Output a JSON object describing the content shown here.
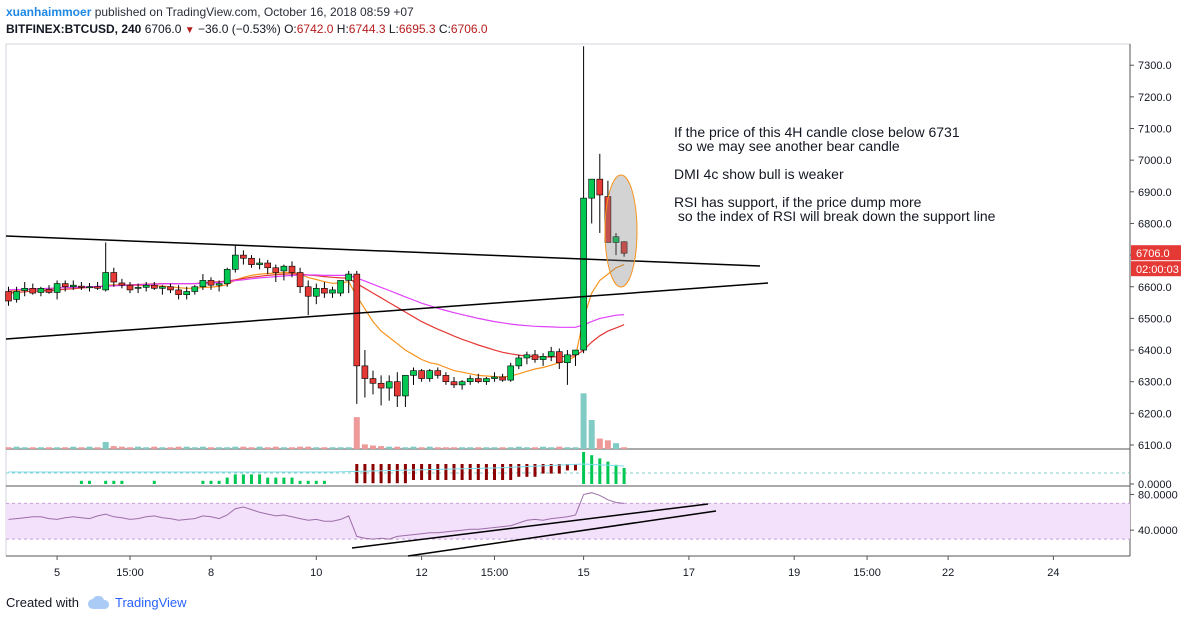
{
  "header": {
    "author": "xuanhaimmoer",
    "published_text": "published on TradingView.com, October 16, 2018 08:59 +07",
    "symbol": "BITFINEX:BTCUSD, 240",
    "last": "6706.0",
    "change": "−36.0 (−0.53%)",
    "o_label": "O:",
    "o_value": "6742.0",
    "h_label": "H:",
    "h_value": "6744.3",
    "l_label": "L:",
    "l_value": "6695.3",
    "c_label": "C:",
    "c_value": "6706.0"
  },
  "footer": {
    "created_with": "Created with",
    "brand": "TradingView"
  },
  "colors": {
    "bull": "#00c853",
    "bear": "#e53935",
    "ma_fast": "#f7941d",
    "ma_mid": "#e53935",
    "ma_slow": "#e040fb",
    "rsi_band": "#f3e0fb",
    "rsi_line": "#9c6ea8",
    "vol_bull": "#80cbc4",
    "vol_bear": "#ef9a9a",
    "price_tag_bg": "#e53935",
    "dmi_bull": "#00c853",
    "dmi_bear": "#8b0000"
  },
  "annotations": [
    "If the price of this 4H candle close below 6731",
    " so we may see another bear candle",
    "DMI 4c show bull is weaker",
    "RSI has support, if the price dump more",
    " so the index of RSI will break down the support line"
  ],
  "chart_data": {
    "type": "candlestick",
    "price_axis": {
      "ticks": [
        7300,
        7200,
        7100,
        7000,
        6900,
        6800,
        6700,
        6600,
        6500,
        6400,
        6300,
        6200,
        6100
      ],
      "tick_labels": [
        "7300.0",
        "7200.0",
        "7100.0",
        "7000.0",
        "6900.0",
        "6800.0",
        "6700.0",
        "6600.0",
        "6500.0",
        "6400.0",
        "6300.0",
        "6200.0",
        "6100.0"
      ],
      "last_price_label": "6706.0",
      "countdown_label": "02:00:03"
    },
    "x_axis": {
      "tick_labels": [
        "5",
        "15:00",
        "8",
        "10",
        "12",
        "15:00",
        "15",
        "17",
        "19",
        "15:00",
        "22",
        "24"
      ],
      "tick_index": [
        6,
        15,
        25,
        38,
        51,
        60,
        71,
        84,
        97,
        106,
        116,
        129
      ]
    },
    "candles_ohlc": [
      [
        6585,
        6600,
        6540,
        6555
      ],
      [
        6560,
        6600,
        6550,
        6585
      ],
      [
        6588,
        6615,
        6570,
        6595
      ],
      [
        6595,
        6610,
        6575,
        6580
      ],
      [
        6582,
        6600,
        6570,
        6595
      ],
      [
        6592,
        6605,
        6578,
        6582
      ],
      [
        6582,
        6620,
        6560,
        6610
      ],
      [
        6610,
        6620,
        6585,
        6600
      ],
      [
        6600,
        6620,
        6590,
        6605
      ],
      [
        6602,
        6615,
        6590,
        6598
      ],
      [
        6598,
        6612,
        6585,
        6600
      ],
      [
        6600,
        6615,
        6590,
        6595
      ],
      [
        6590,
        6740,
        6585,
        6645
      ],
      [
        6645,
        6660,
        6600,
        6615
      ],
      [
        6612,
        6625,
        6595,
        6605
      ],
      [
        6605,
        6615,
        6580,
        6590
      ],
      [
        6595,
        6610,
        6580,
        6598
      ],
      [
        6598,
        6615,
        6585,
        6605
      ],
      [
        6605,
        6615,
        6590,
        6595
      ],
      [
        6595,
        6605,
        6575,
        6600
      ],
      [
        6600,
        6610,
        6580,
        6590
      ],
      [
        6590,
        6605,
        6560,
        6575
      ],
      [
        6575,
        6600,
        6560,
        6585
      ],
      [
        6585,
        6605,
        6575,
        6600
      ],
      [
        6600,
        6640,
        6590,
        6620
      ],
      [
        6620,
        6630,
        6590,
        6605
      ],
      [
        6605,
        6620,
        6585,
        6610
      ],
      [
        6610,
        6660,
        6600,
        6655
      ],
      [
        6655,
        6730,
        6645,
        6700
      ],
      [
        6700,
        6715,
        6670,
        6690
      ],
      [
        6690,
        6700,
        6660,
        6670
      ],
      [
        6670,
        6690,
        6655,
        6675
      ],
      [
        6675,
        6685,
        6640,
        6660
      ],
      [
        6660,
        6670,
        6615,
        6645
      ],
      [
        6650,
        6670,
        6620,
        6665
      ],
      [
        6665,
        6680,
        6630,
        6645
      ],
      [
        6645,
        6660,
        6580,
        6600
      ],
      [
        6600,
        6620,
        6510,
        6570
      ],
      [
        6570,
        6610,
        6545,
        6595
      ],
      [
        6595,
        6615,
        6565,
        6580
      ],
      [
        6580,
        6600,
        6565,
        6590
      ],
      [
        6580,
        6610,
        6570,
        6620
      ],
      [
        6620,
        6650,
        6580,
        6640
      ],
      [
        6640,
        6650,
        6230,
        6350
      ],
      [
        6350,
        6400,
        6250,
        6310
      ],
      [
        6310,
        6335,
        6260,
        6295
      ],
      [
        6295,
        6320,
        6225,
        6280
      ],
      [
        6280,
        6320,
        6240,
        6300
      ],
      [
        6300,
        6330,
        6220,
        6255
      ],
      [
        6255,
        6310,
        6220,
        6320
      ],
      [
        6320,
        6345,
        6290,
        6335
      ],
      [
        6335,
        6340,
        6300,
        6310
      ],
      [
        6310,
        6340,
        6300,
        6335
      ],
      [
        6335,
        6345,
        6310,
        6320
      ],
      [
        6320,
        6330,
        6290,
        6300
      ],
      [
        6300,
        6315,
        6280,
        6290
      ],
      [
        6290,
        6305,
        6275,
        6300
      ],
      [
        6300,
        6320,
        6290,
        6310
      ],
      [
        6310,
        6325,
        6295,
        6300
      ],
      [
        6300,
        6315,
        6290,
        6310
      ],
      [
        6310,
        6330,
        6300,
        6315
      ],
      [
        6315,
        6325,
        6300,
        6305
      ],
      [
        6305,
        6360,
        6300,
        6350
      ],
      [
        6350,
        6385,
        6340,
        6375
      ],
      [
        6375,
        6395,
        6355,
        6385
      ],
      [
        6385,
        6400,
        6360,
        6370
      ],
      [
        6370,
        6390,
        6350,
        6380
      ],
      [
        6380,
        6410,
        6365,
        6395
      ],
      [
        6395,
        6405,
        6340,
        6360
      ],
      [
        6360,
        6400,
        6290,
        6385
      ],
      [
        6385,
        6400,
        6350,
        6400
      ],
      [
        6400,
        7360,
        6390,
        6880
      ],
      [
        6880,
        6940,
        6800,
        6940
      ],
      [
        6940,
        7020,
        6770,
        6890
      ],
      [
        6885,
        6935,
        6750,
        6740
      ],
      [
        6740,
        6770,
        6700,
        6758
      ],
      [
        6742,
        6744,
        6695,
        6706
      ]
    ],
    "volume": [
      3,
      4,
      3,
      3,
      3,
      3,
      3,
      3,
      4,
      3,
      4,
      3,
      12,
      5,
      4,
      3,
      4,
      3,
      4,
      3,
      3,
      4,
      4,
      3,
      4,
      3,
      3,
      3,
      4,
      4,
      3,
      4,
      3,
      4,
      3,
      3,
      4,
      4,
      3,
      3,
      3,
      3,
      3,
      55,
      8,
      6,
      5,
      4,
      4,
      3,
      4,
      3,
      4,
      3,
      3,
      3,
      3,
      3,
      3,
      3,
      3,
      3,
      3,
      4,
      3,
      3,
      4,
      3,
      4,
      3,
      3,
      96,
      50,
      18,
      15,
      10,
      3
    ],
    "dmi": [
      0,
      0,
      0,
      0,
      0,
      0,
      0,
      0,
      0,
      1,
      1,
      0,
      1,
      1,
      1,
      0,
      0,
      0,
      1,
      0,
      0,
      0,
      0,
      0,
      1,
      1,
      1,
      2,
      3,
      3,
      3,
      3,
      2,
      2,
      2,
      2,
      1,
      1,
      1,
      1,
      0,
      0,
      0,
      -6,
      -6,
      -6,
      -6,
      -6,
      -6,
      -6,
      -5,
      -5,
      -5,
      -5,
      -5,
      -5,
      -5,
      -5,
      -5,
      -5,
      -5,
      -5,
      -5,
      -4,
      -4,
      -4,
      -3,
      -3,
      -3,
      -2,
      -2,
      10,
      9,
      8,
      7,
      6,
      5
    ],
    "rsi": [
      52,
      53,
      54,
      55,
      55,
      53,
      52,
      54,
      55,
      54,
      53,
      56,
      58,
      55,
      54,
      52,
      53,
      55,
      56,
      54,
      53,
      51,
      52,
      53,
      56,
      55,
      53,
      57,
      64,
      66,
      63,
      60,
      58,
      56,
      57,
      55,
      53,
      51,
      52,
      50,
      50,
      52,
      56,
      33,
      31,
      30,
      31,
      30,
      33,
      34,
      35,
      36,
      37,
      37,
      38,
      39,
      40,
      41,
      41,
      42,
      43,
      44,
      45,
      48,
      51,
      52,
      51,
      53,
      54,
      55,
      57,
      80,
      82,
      79,
      74,
      71,
      70
    ],
    "rsi_axis": {
      "tick_labels": [
        "80.0000",
        "40.0000"
      ],
      "band": [
        30,
        70
      ]
    },
    "dmi_axis": {
      "tick_labels": [
        "0.0000"
      ]
    },
    "series": [
      {
        "name": "ma_fast",
        "values": [
          6585,
          6588,
          6590,
          6592,
          6593,
          6593,
          6596,
          6597,
          6598,
          6598,
          6598,
          6598,
          6605,
          6606,
          6606,
          6605,
          6604,
          6604,
          6603,
          6602,
          6600,
          6597,
          6595,
          6595,
          6598,
          6599,
          6601,
          6607,
          6621,
          6630,
          6636,
          6640,
          6642,
          6643,
          6645,
          6645,
          6640,
          6629,
          6623,
          6616,
          6611,
          6612,
          6616,
          6570,
          6530,
          6490,
          6460,
          6440,
          6420,
          6400,
          6385,
          6370,
          6360,
          6355,
          6345,
          6335,
          6330,
          6325,
          6320,
          6318,
          6316,
          6315,
          6318,
          6325,
          6333,
          6340,
          6345,
          6352,
          6360,
          6368,
          6380,
          6500,
          6580,
          6620,
          6640,
          6660,
          6670
        ]
      },
      {
        "name": "ma_mid",
        "values": [
          6580,
          6582,
          6584,
          6586,
          6587,
          6588,
          6590,
          6592,
          6594,
          6596,
          6598,
          6600,
          6602,
          6604,
          6605,
          6606,
          6607,
          6608,
          6609,
          6610,
          6610,
          6610,
          6610,
          6610,
          6612,
          6614,
          6616,
          6618,
          6622,
          6626,
          6630,
          6633,
          6636,
          6638,
          6640,
          6641,
          6640,
          6637,
          6635,
          6632,
          6630,
          6628,
          6627,
          6610,
          6595,
          6580,
          6565,
          6550,
          6535,
          6520,
          6505,
          6490,
          6478,
          6466,
          6455,
          6444,
          6434,
          6425,
          6416,
          6408,
          6400,
          6393,
          6388,
          6384,
          6381,
          6379,
          6378,
          6378,
          6379,
          6380,
          6382,
          6400,
          6425,
          6445,
          6460,
          6470,
          6480
        ]
      },
      {
        "name": "ma_slow",
        "values": [
          6590,
          6591,
          6592,
          6593,
          6594,
          6595,
          6596,
          6597,
          6598,
          6599,
          6600,
          6601,
          6602,
          6603,
          6604,
          6605,
          6606,
          6607,
          6608,
          6609,
          6610,
          6610,
          6610,
          6610,
          6611,
          6612,
          6614,
          6616,
          6619,
          6622,
          6625,
          6628,
          6630,
          6632,
          6634,
          6636,
          6637,
          6637,
          6637,
          6636,
          6636,
          6636,
          6636,
          6628,
          6618,
          6608,
          6598,
          6588,
          6578,
          6568,
          6558,
          6548,
          6540,
          6532,
          6525,
          6518,
          6512,
          6506,
          6500,
          6495,
          6490,
          6486,
          6482,
          6479,
          6477,
          6475,
          6474,
          6473,
          6472,
          6472,
          6472,
          6480,
          6490,
          6500,
          6505,
          6510,
          6512
        ]
      }
    ]
  }
}
